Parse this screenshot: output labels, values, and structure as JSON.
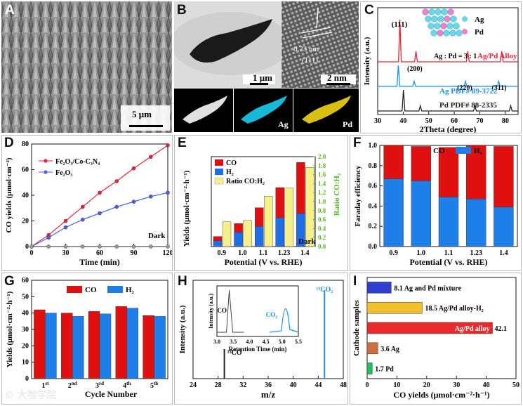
{
  "figure": {
    "panel_labels": [
      "A",
      "B",
      "C",
      "D",
      "E",
      "F",
      "G",
      "H",
      "I"
    ],
    "watermark": "© 大咖学院"
  },
  "panelA": {
    "scale_bar": "5 μm"
  },
  "panelB": {
    "scale_bar_1": "1 μm",
    "scale_bar_2": "2 nm",
    "d_spacing": "0.23 nm",
    "plane": "(111)",
    "map_ag": "Ag",
    "map_pd": "Pd"
  },
  "chart_data": [
    {
      "panel": "C",
      "type": "line",
      "xlabel": "2Theta (degree)",
      "ylabel": "Intensity (a.u.)",
      "xlim": [
        30,
        85
      ],
      "xticks": [
        30,
        40,
        50,
        60,
        70,
        80
      ],
      "series": [
        {
          "name": "Ag/Pd Alloy",
          "color": "#e8243c",
          "peaks": [
            [
              38.7,
              "(111)"
            ],
            [
              45.0,
              ""
            ],
            [
              65.3,
              ""
            ],
            [
              78.6,
              ""
            ]
          ]
        },
        {
          "name": "Ag PDF# 89-3722",
          "color": "#1f8fe8",
          "peaks": [
            [
              38.1,
              ""
            ],
            [
              44.3,
              "(200)"
            ],
            [
              64.4,
              "(220)"
            ],
            [
              77.4,
              "(311)"
            ]
          ]
        },
        {
          "name": "Pd PDF# 88-2335",
          "color": "#222222",
          "peaks": [
            [
              40.1,
              ""
            ],
            [
              46.7,
              ""
            ],
            [
              68.1,
              ""
            ],
            [
              82.1,
              ""
            ]
          ]
        }
      ],
      "labels": {
        "p111": "(111)",
        "p200": "(200)",
        "p220": "(220)",
        "p311": "(311)",
        "ratio": "Ag : Pd = 3 : 1",
        "leg_ag": "Ag",
        "leg_pd": "Pd",
        "s1": "Ag/Pd Alloy",
        "s2": "Ag   PDF# 89-3722",
        "s3": "Pd    PDF# 88-2335"
      }
    },
    {
      "panel": "D",
      "type": "line",
      "xlabel": "Time (min)",
      "ylabel": "CO yields (μmol·cm⁻²)",
      "xlim": [
        0,
        120
      ],
      "ylim": [
        0,
        80
      ],
      "xticks": [
        0,
        30,
        60,
        90,
        120
      ],
      "yticks": [
        0,
        20,
        40,
        60,
        80
      ],
      "x": [
        0,
        15,
        30,
        45,
        60,
        75,
        90,
        105,
        120
      ],
      "series": [
        {
          "name": "Fe2O3/Co-C3N4",
          "color": "#e8243c",
          "values": [
            0,
            9,
            20,
            31,
            42,
            51,
            61,
            70,
            79
          ]
        },
        {
          "name": "Fe2O3",
          "color": "#4a5fe0",
          "values": [
            0,
            7,
            15,
            21,
            26,
            31,
            35,
            39,
            42
          ]
        },
        {
          "name": "Dark",
          "color": "#555555",
          "values": [
            0,
            0,
            0,
            0,
            0,
            0,
            0,
            0,
            0
          ]
        }
      ],
      "legend": {
        "s1": "Fe₂O₃/Co-C₃N₄",
        "s2": "Fe₂O₃"
      },
      "dark_label": "Dark"
    },
    {
      "panel": "E",
      "type": "bar",
      "xlabel": "Potential (V vs. RHE)",
      "ylabel": "Yields (μmol·cm⁻²·h⁻¹)",
      "y2label": "Ratio CO:H₂",
      "categories": [
        "0.9",
        "1.0",
        "1.1",
        "1.23",
        "1.4"
      ],
      "series": [
        {
          "name": "H2",
          "color": "#1f6ee8",
          "values": [
            8,
            20,
            28,
            40,
            46
          ]
        },
        {
          "name": "CO",
          "color": "#e01010",
          "values": [
            14,
            32,
            54,
            82,
            117
          ]
        },
        {
          "name": "Ratio CO:H2",
          "color": "#f5f08a",
          "values": [
            0.55,
            0.58,
            1.12,
            1.3,
            1.76
          ]
        }
      ],
      "y2lim": [
        0,
        2.0
      ],
      "y2ticks": [
        "0.0",
        "0.2",
        "0.4",
        "0.6",
        "0.8",
        "1.0",
        "1.2",
        "1.4",
        "1.6",
        "1.8",
        "2.0"
      ],
      "ymax": 125,
      "legend": {
        "co": "CO",
        "h2": "H₂",
        "ratio": "Ratio CO:H₂"
      },
      "dark_label": "Dark"
    },
    {
      "panel": "F",
      "type": "bar",
      "xlabel": "Potential (V vs. RHE)",
      "ylabel": "Faraday efficiency",
      "categories": [
        "0.9",
        "1.0",
        "1.1",
        "1.23",
        "1.4"
      ],
      "ylim": [
        0,
        1.0
      ],
      "yticks": [
        "0.0",
        "0.2",
        "0.4",
        "0.6",
        "0.8",
        "1.0"
      ],
      "series": [
        {
          "name": "H2",
          "color": "#1f7fe8",
          "values": [
            0.67,
            0.65,
            0.49,
            0.47,
            0.39
          ]
        },
        {
          "name": "CO",
          "color": "#e01010",
          "values": [
            0.33,
            0.34,
            0.49,
            0.53,
            0.6
          ]
        }
      ],
      "legend": {
        "co": "CO",
        "h2": "H₂"
      }
    },
    {
      "panel": "G",
      "type": "bar",
      "xlabel": "Cycle Number",
      "ylabel": "Yields (μmol·cm⁻²·h⁻¹)",
      "categories": [
        "1st",
        "2nd",
        "3rd",
        "4th",
        "5th"
      ],
      "cat_base": [
        "1",
        "2",
        "3",
        "4",
        "5"
      ],
      "cat_sup": [
        "st",
        "nd",
        "rd",
        "th",
        "th"
      ],
      "ylim": [
        0,
        60
      ],
      "yticks": [
        "0",
        "10",
        "20",
        "30",
        "40",
        "50",
        "60"
      ],
      "series": [
        {
          "name": "CO",
          "color": "#e01010",
          "values": [
            42,
            40,
            41,
            44,
            38.5
          ]
        },
        {
          "name": "H2",
          "color": "#1f7fe8",
          "values": [
            40,
            38,
            39.5,
            43,
            38
          ]
        }
      ],
      "legend": {
        "co": "CO",
        "h2": "H₂"
      }
    },
    {
      "panel": "H",
      "type": "line",
      "xlabel": "m/z",
      "ylabel": "Intensity (a.u.)",
      "xlim": [
        24,
        48
      ],
      "xticks": [
        24,
        28,
        32,
        36,
        40,
        44,
        48
      ],
      "peaks": [
        {
          "name": "13CO",
          "x": 29,
          "h": 0.3,
          "color": "#222222"
        },
        {
          "name": "13CO2",
          "x": 45,
          "h": 0.9,
          "color": "#1f8fe8"
        }
      ],
      "labels": {
        "co13": "¹³CO",
        "co2_13": "¹³CO₂"
      },
      "inset": {
        "xlabel": "Retention Time (min)",
        "ylabel": "Intensity (a.u.)",
        "xlim": [
          3.0,
          5.5
        ],
        "xticks": [
          "3.0",
          "3.5",
          "4.0",
          "4.5",
          "5.0",
          "5.5"
        ],
        "peaks": [
          {
            "name": "CO",
            "x": 3.4,
            "color": "#444444"
          },
          {
            "name": "CO2",
            "x": 5.15,
            "color": "#1f8fe8"
          }
        ],
        "co_label": "CO",
        "co2_label": "CO₂"
      }
    },
    {
      "panel": "I",
      "type": "bar",
      "orientation": "horizontal",
      "xlabel": "CO yields (μmol·cm⁻²·h⁻¹)",
      "ylabel": "Cathode samples",
      "xlim": [
        0,
        50
      ],
      "xticks": [
        "0",
        "10",
        "20",
        "30",
        "40",
        "50"
      ],
      "bars": [
        {
          "name": "Ag and Pd mixture",
          "value": 8.1,
          "color": "#2e3fd0",
          "label": "8.1  Ag and Pd mixture"
        },
        {
          "name": "Ag/Pd alloy-H2",
          "value": 18.5,
          "color": "#f0c030",
          "label": "18.5 Ag/Pd alloy-H₂"
        },
        {
          "name": "Ag/Pd alloy",
          "value": 42.1,
          "color": "#e82a2a",
          "label_in": "Ag/Pd alloy",
          "label_out": "42.1"
        },
        {
          "name": "Ag",
          "value": 3.6,
          "color": "#c87040",
          "label": "3.6  Ag"
        },
        {
          "name": "Pd",
          "value": 1.7,
          "color": "#20c060",
          "label": "1.7  Pd"
        }
      ]
    }
  ]
}
